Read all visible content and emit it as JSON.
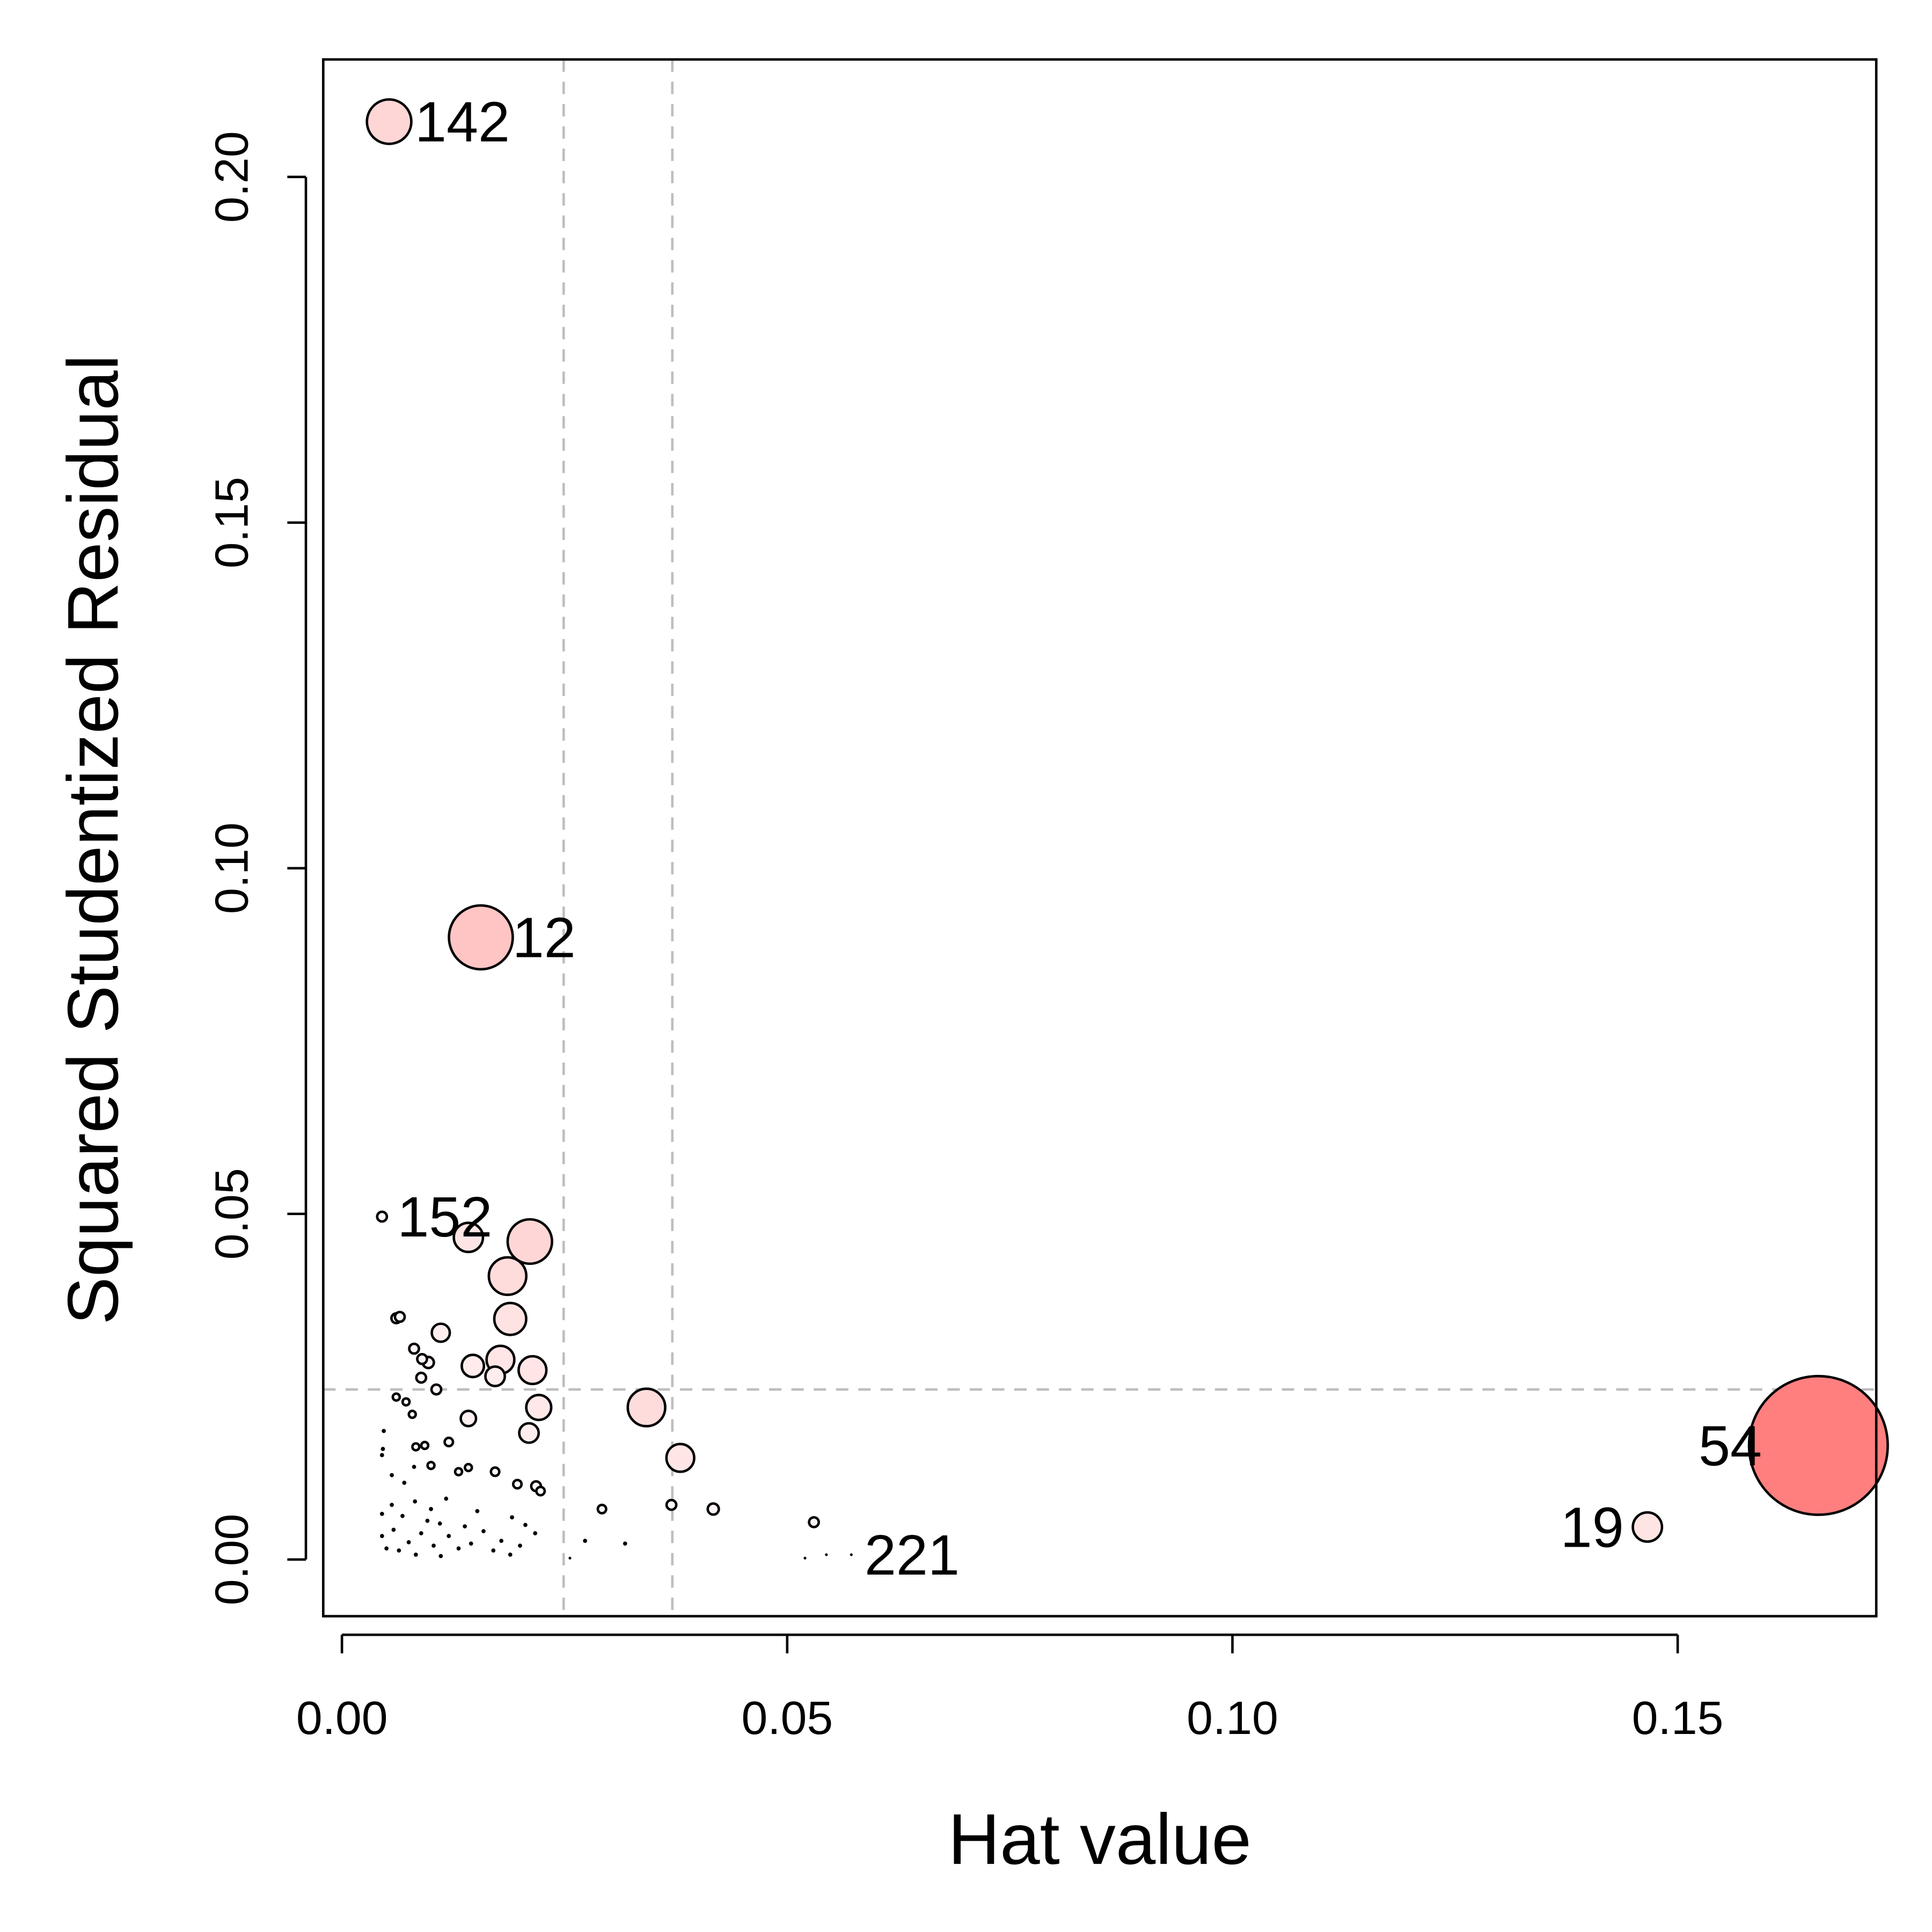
{
  "chart_data": {
    "type": "scatter",
    "title": "",
    "xlabel": "Hat value",
    "ylabel": "Squared Studentized Residual",
    "xlim": [
      -0.0021,
      0.1723
    ],
    "ylim": [
      -0.0082,
      0.217
    ],
    "xticks": [
      0.0,
      0.05,
      0.1,
      0.15
    ],
    "xtick_labels": [
      "0.00",
      "0.05",
      "0.10",
      "0.15"
    ],
    "yticks": [
      0.0,
      0.05,
      0.1,
      0.15,
      0.2
    ],
    "ytick_labels": [
      "0.00",
      "0.05",
      "0.10",
      "0.15",
      "0.20"
    ],
    "grid": false,
    "bubble_fill_max": "#FF7F7F",
    "reference_lines": {
      "color": "#BEBEBE",
      "style": "dashed",
      "vertical_x": [
        0.0249,
        0.0371
      ],
      "horizontal_y": [
        0.0246
      ]
    },
    "labeled_points": [
      {
        "label": "142",
        "x": 0.0053,
        "y": 0.208,
        "size": 0.32,
        "label_side": "right"
      },
      {
        "label": "12",
        "x": 0.0156,
        "y": 0.09,
        "size": 0.46,
        "label_side": "right"
      },
      {
        "label": "152",
        "x": 0.0045,
        "y": 0.0496,
        "size": 0.07,
        "label_side": "right"
      },
      {
        "label": "54",
        "x": 0.1658,
        "y": 0.0165,
        "size": 1.0,
        "label_side": "left"
      },
      {
        "label": "19",
        "x": 0.1466,
        "y": 0.0047,
        "size": 0.21,
        "label_side": "left"
      },
      {
        "label": "221",
        "x": 0.0572,
        "y": 0.0007,
        "size": 0.02,
        "label_side": "right"
      }
    ],
    "points": [
      [
        0.0211,
        0.046,
        0.32
      ],
      [
        0.0142,
        0.0466,
        0.21
      ],
      [
        0.0186,
        0.041,
        0.27
      ],
      [
        0.0189,
        0.0348,
        0.23
      ],
      [
        0.0178,
        0.0289,
        0.2
      ],
      [
        0.0214,
        0.0274,
        0.2
      ],
      [
        0.0147,
        0.028,
        0.16
      ],
      [
        0.0172,
        0.0265,
        0.14
      ],
      [
        0.0221,
        0.022,
        0.18
      ],
      [
        0.0342,
        0.022,
        0.27
      ],
      [
        0.038,
        0.0147,
        0.2
      ],
      [
        0.021,
        0.0183,
        0.14
      ],
      [
        0.0142,
        0.0204,
        0.11
      ],
      [
        0.0111,
        0.0328,
        0.13
      ],
      [
        0.0061,
        0.0349,
        0.07
      ],
      [
        0.0065,
        0.0351,
        0.07
      ],
      [
        0.0081,
        0.0305,
        0.07
      ],
      [
        0.009,
        0.029,
        0.07
      ],
      [
        0.0097,
        0.0285,
        0.08
      ],
      [
        0.0089,
        0.0263,
        0.07
      ],
      [
        0.0106,
        0.0246,
        0.07
      ],
      [
        0.0061,
        0.0235,
        0.05
      ],
      [
        0.0072,
        0.0228,
        0.05
      ],
      [
        0.0079,
        0.021,
        0.05
      ],
      [
        0.012,
        0.017,
        0.06
      ],
      [
        0.0093,
        0.0165,
        0.05
      ],
      [
        0.0083,
        0.0163,
        0.05
      ],
      [
        0.01,
        0.0136,
        0.05
      ],
      [
        0.0131,
        0.0127,
        0.05
      ],
      [
        0.0142,
        0.0133,
        0.05
      ],
      [
        0.0172,
        0.0127,
        0.06
      ],
      [
        0.0197,
        0.0109,
        0.06
      ],
      [
        0.0218,
        0.0106,
        0.07
      ],
      [
        0.0223,
        0.0099,
        0.06
      ],
      [
        0.037,
        0.0079,
        0.07
      ],
      [
        0.0417,
        0.0073,
        0.08
      ],
      [
        0.0292,
        0.0073,
        0.06
      ],
      [
        0.053,
        0.0054,
        0.07
      ],
      [
        0.0047,
        0.0186,
        0.03
      ],
      [
        0.0046,
        0.016,
        0.03
      ],
      [
        0.0045,
        0.0151,
        0.03
      ],
      [
        0.0056,
        0.0122,
        0.03
      ],
      [
        0.007,
        0.0111,
        0.03
      ],
      [
        0.0081,
        0.0134,
        0.03
      ],
      [
        0.0117,
        0.0088,
        0.03
      ],
      [
        0.0152,
        0.007,
        0.03
      ],
      [
        0.0191,
        0.0061,
        0.03
      ],
      [
        0.0206,
        0.005,
        0.03
      ],
      [
        0.0273,
        0.0027,
        0.03
      ],
      [
        0.0318,
        0.0023,
        0.03
      ],
      [
        0.0256,
        0.0002,
        0.02
      ],
      [
        0.052,
        0.0002,
        0.02
      ],
      [
        0.0544,
        0.0007,
        0.02
      ],
      [
        0.0045,
        0.0034,
        0.03
      ],
      [
        0.005,
        0.0016,
        0.03
      ],
      [
        0.0058,
        0.0043,
        0.03
      ],
      [
        0.0064,
        0.0013,
        0.03
      ],
      [
        0.0075,
        0.0025,
        0.03
      ],
      [
        0.0083,
        0.0007,
        0.03
      ],
      [
        0.0089,
        0.0038,
        0.03
      ],
      [
        0.0096,
        0.0056,
        0.03
      ],
      [
        0.0103,
        0.002,
        0.03
      ],
      [
        0.0111,
        0.0005,
        0.03
      ],
      [
        0.012,
        0.0034,
        0.03
      ],
      [
        0.0131,
        0.0016,
        0.03
      ],
      [
        0.0138,
        0.0048,
        0.03
      ],
      [
        0.0145,
        0.0023,
        0.03
      ],
      [
        0.0159,
        0.0041,
        0.03
      ],
      [
        0.017,
        0.0013,
        0.03
      ],
      [
        0.0179,
        0.0027,
        0.03
      ],
      [
        0.0189,
        0.0007,
        0.03
      ],
      [
        0.02,
        0.002,
        0.03
      ],
      [
        0.0217,
        0.0038,
        0.03
      ],
      [
        0.0045,
        0.0066,
        0.03
      ],
      [
        0.0056,
        0.0079,
        0.03
      ],
      [
        0.0068,
        0.0063,
        0.03
      ],
      [
        0.0082,
        0.0084,
        0.03
      ],
      [
        0.01,
        0.0073,
        0.03
      ],
      [
        0.011,
        0.0052,
        0.03
      ]
    ]
  }
}
